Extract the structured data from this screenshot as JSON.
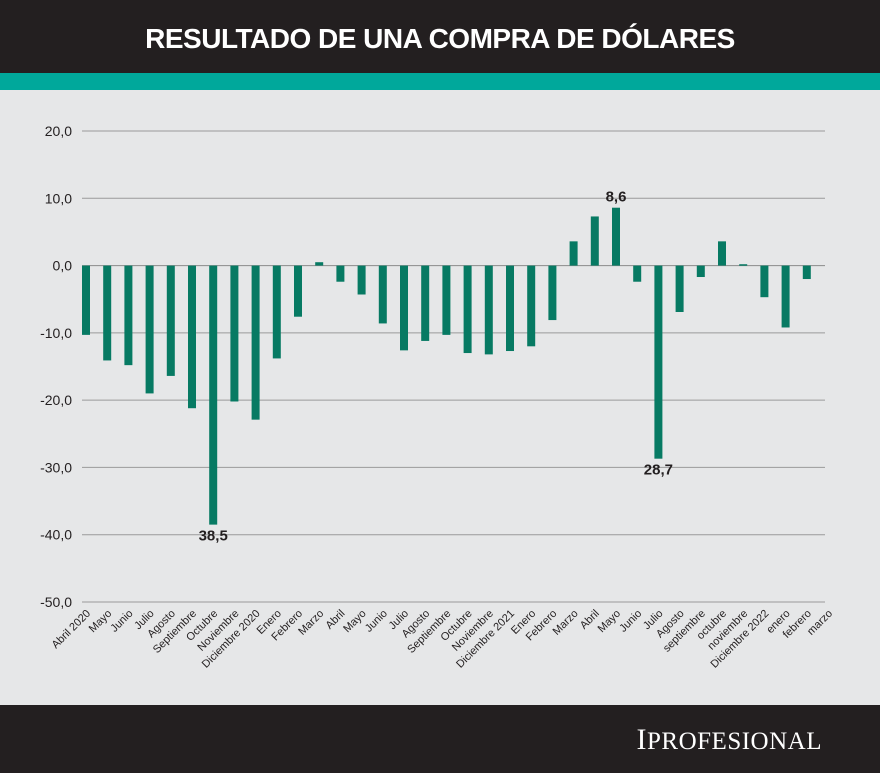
{
  "header": {
    "title": "RESULTADO DE UNA COMPRA DE DÓLARES"
  },
  "footer": {
    "logo_text": "IPROFESIONAL"
  },
  "colors": {
    "bar": "#077a63",
    "accent": "#00a89b",
    "dark": "#231f20",
    "background": "#e6e7e8"
  },
  "chart_data": {
    "type": "bar",
    "title": "RESULTADO DE UNA COMPRA DE DÓLARES",
    "xlabel": "",
    "ylabel": "",
    "ylim": [
      -50,
      20
    ],
    "yticks": [
      "20,0",
      "10,0",
      "0,0",
      "-10,0",
      "-20,0",
      "-30,0",
      "-40,0",
      "-50,0"
    ],
    "ytick_values": [
      20,
      10,
      0,
      -10,
      -20,
      -30,
      -40,
      -50
    ],
    "grid": true,
    "categories": [
      "Abril 2020",
      "Mayo",
      "Junio",
      "Julio",
      "Agosto",
      "Septiembre",
      "Octubre",
      "Noviembre",
      "Diciembre 2020",
      "Enero",
      "Febrero",
      "Marzo",
      "Abril",
      "Mayo",
      "Junio",
      "Julio",
      "Agosto",
      "Septiembre",
      "Octubre",
      "Noviembre",
      "Diciembre 2021",
      "Enero",
      "Febrero",
      "Marzo",
      "Abril",
      "Mayo",
      "Junio",
      "Julio",
      "Agosto",
      "septiembre",
      "octubre",
      "noviembre",
      "Diciembre 2022",
      "enero",
      "febrero",
      "marzo"
    ],
    "values": [
      -10.3,
      -14.1,
      -14.8,
      -19.0,
      -16.4,
      -21.2,
      -38.5,
      -20.2,
      -22.9,
      -13.8,
      -7.6,
      0.5,
      -2.4,
      -4.3,
      -8.6,
      -12.6,
      -11.2,
      -10.3,
      -13.0,
      -13.2,
      -12.7,
      -12.0,
      -8.1,
      3.6,
      7.3,
      8.6,
      -2.4,
      -28.7,
      -6.9,
      -1.7,
      3.6,
      0.2,
      -4.7,
      -9.2,
      -2.0,
      0
    ],
    "annotations": [
      {
        "category_index": 6,
        "text": "38,5"
      },
      {
        "category_index": 25,
        "text": "8,6"
      },
      {
        "category_index": 27,
        "text": "28,7"
      }
    ]
  }
}
